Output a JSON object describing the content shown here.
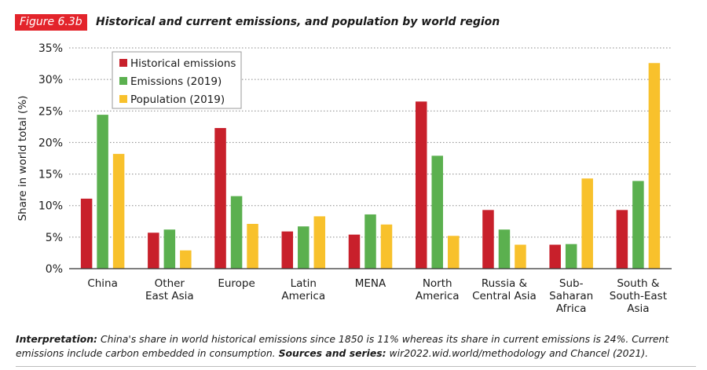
{
  "header": {
    "figure_tag": "Figure 6.3b",
    "title": "Historical and current emissions, and population by world region"
  },
  "chart_data": {
    "type": "bar",
    "ylabel": "Share in world total (%)",
    "xlabel": "",
    "ylim": [
      0,
      35
    ],
    "yticks": [
      "0%",
      "5%",
      "10%",
      "15%",
      "20%",
      "25%",
      "30%",
      "35%"
    ],
    "grid": "horizontal dotted",
    "legend_position": "top-left",
    "categories": [
      [
        "China"
      ],
      [
        "Other",
        "East Asia"
      ],
      [
        "Europe"
      ],
      [
        "Latin",
        "America"
      ],
      [
        "MENA"
      ],
      [
        "North",
        "America"
      ],
      [
        "Russia &",
        "Central Asia"
      ],
      [
        "Sub-",
        "Saharan",
        "Africa"
      ],
      [
        "South &",
        "South-East",
        "Asia"
      ]
    ],
    "series": [
      {
        "name": "Historical emissions",
        "color": "#c8202b",
        "values": [
          11.1,
          5.7,
          22.3,
          5.9,
          5.4,
          26.5,
          9.3,
          3.8,
          9.3
        ]
      },
      {
        "name": "Emissions (2019)",
        "color": "#5bb04f",
        "values": [
          24.4,
          6.2,
          11.5,
          6.7,
          8.6,
          17.9,
          6.2,
          3.9,
          13.9
        ]
      },
      {
        "name": "Population (2019)",
        "color": "#f8c12c",
        "values": [
          18.2,
          2.9,
          7.1,
          8.3,
          7.0,
          5.2,
          3.8,
          14.3,
          32.6
        ]
      }
    ]
  },
  "footnote": {
    "interpretation_label": "Interpretation:",
    "interpretation_text": " China's share in world historical emissions since 1850 is 11% whereas its share in current emissions is 24%. Current emissions include carbon embedded in consumption. ",
    "sources_label": "Sources and series:",
    "sources_text": " wir2022.wid.world/methodology and Chancel (2021)."
  }
}
